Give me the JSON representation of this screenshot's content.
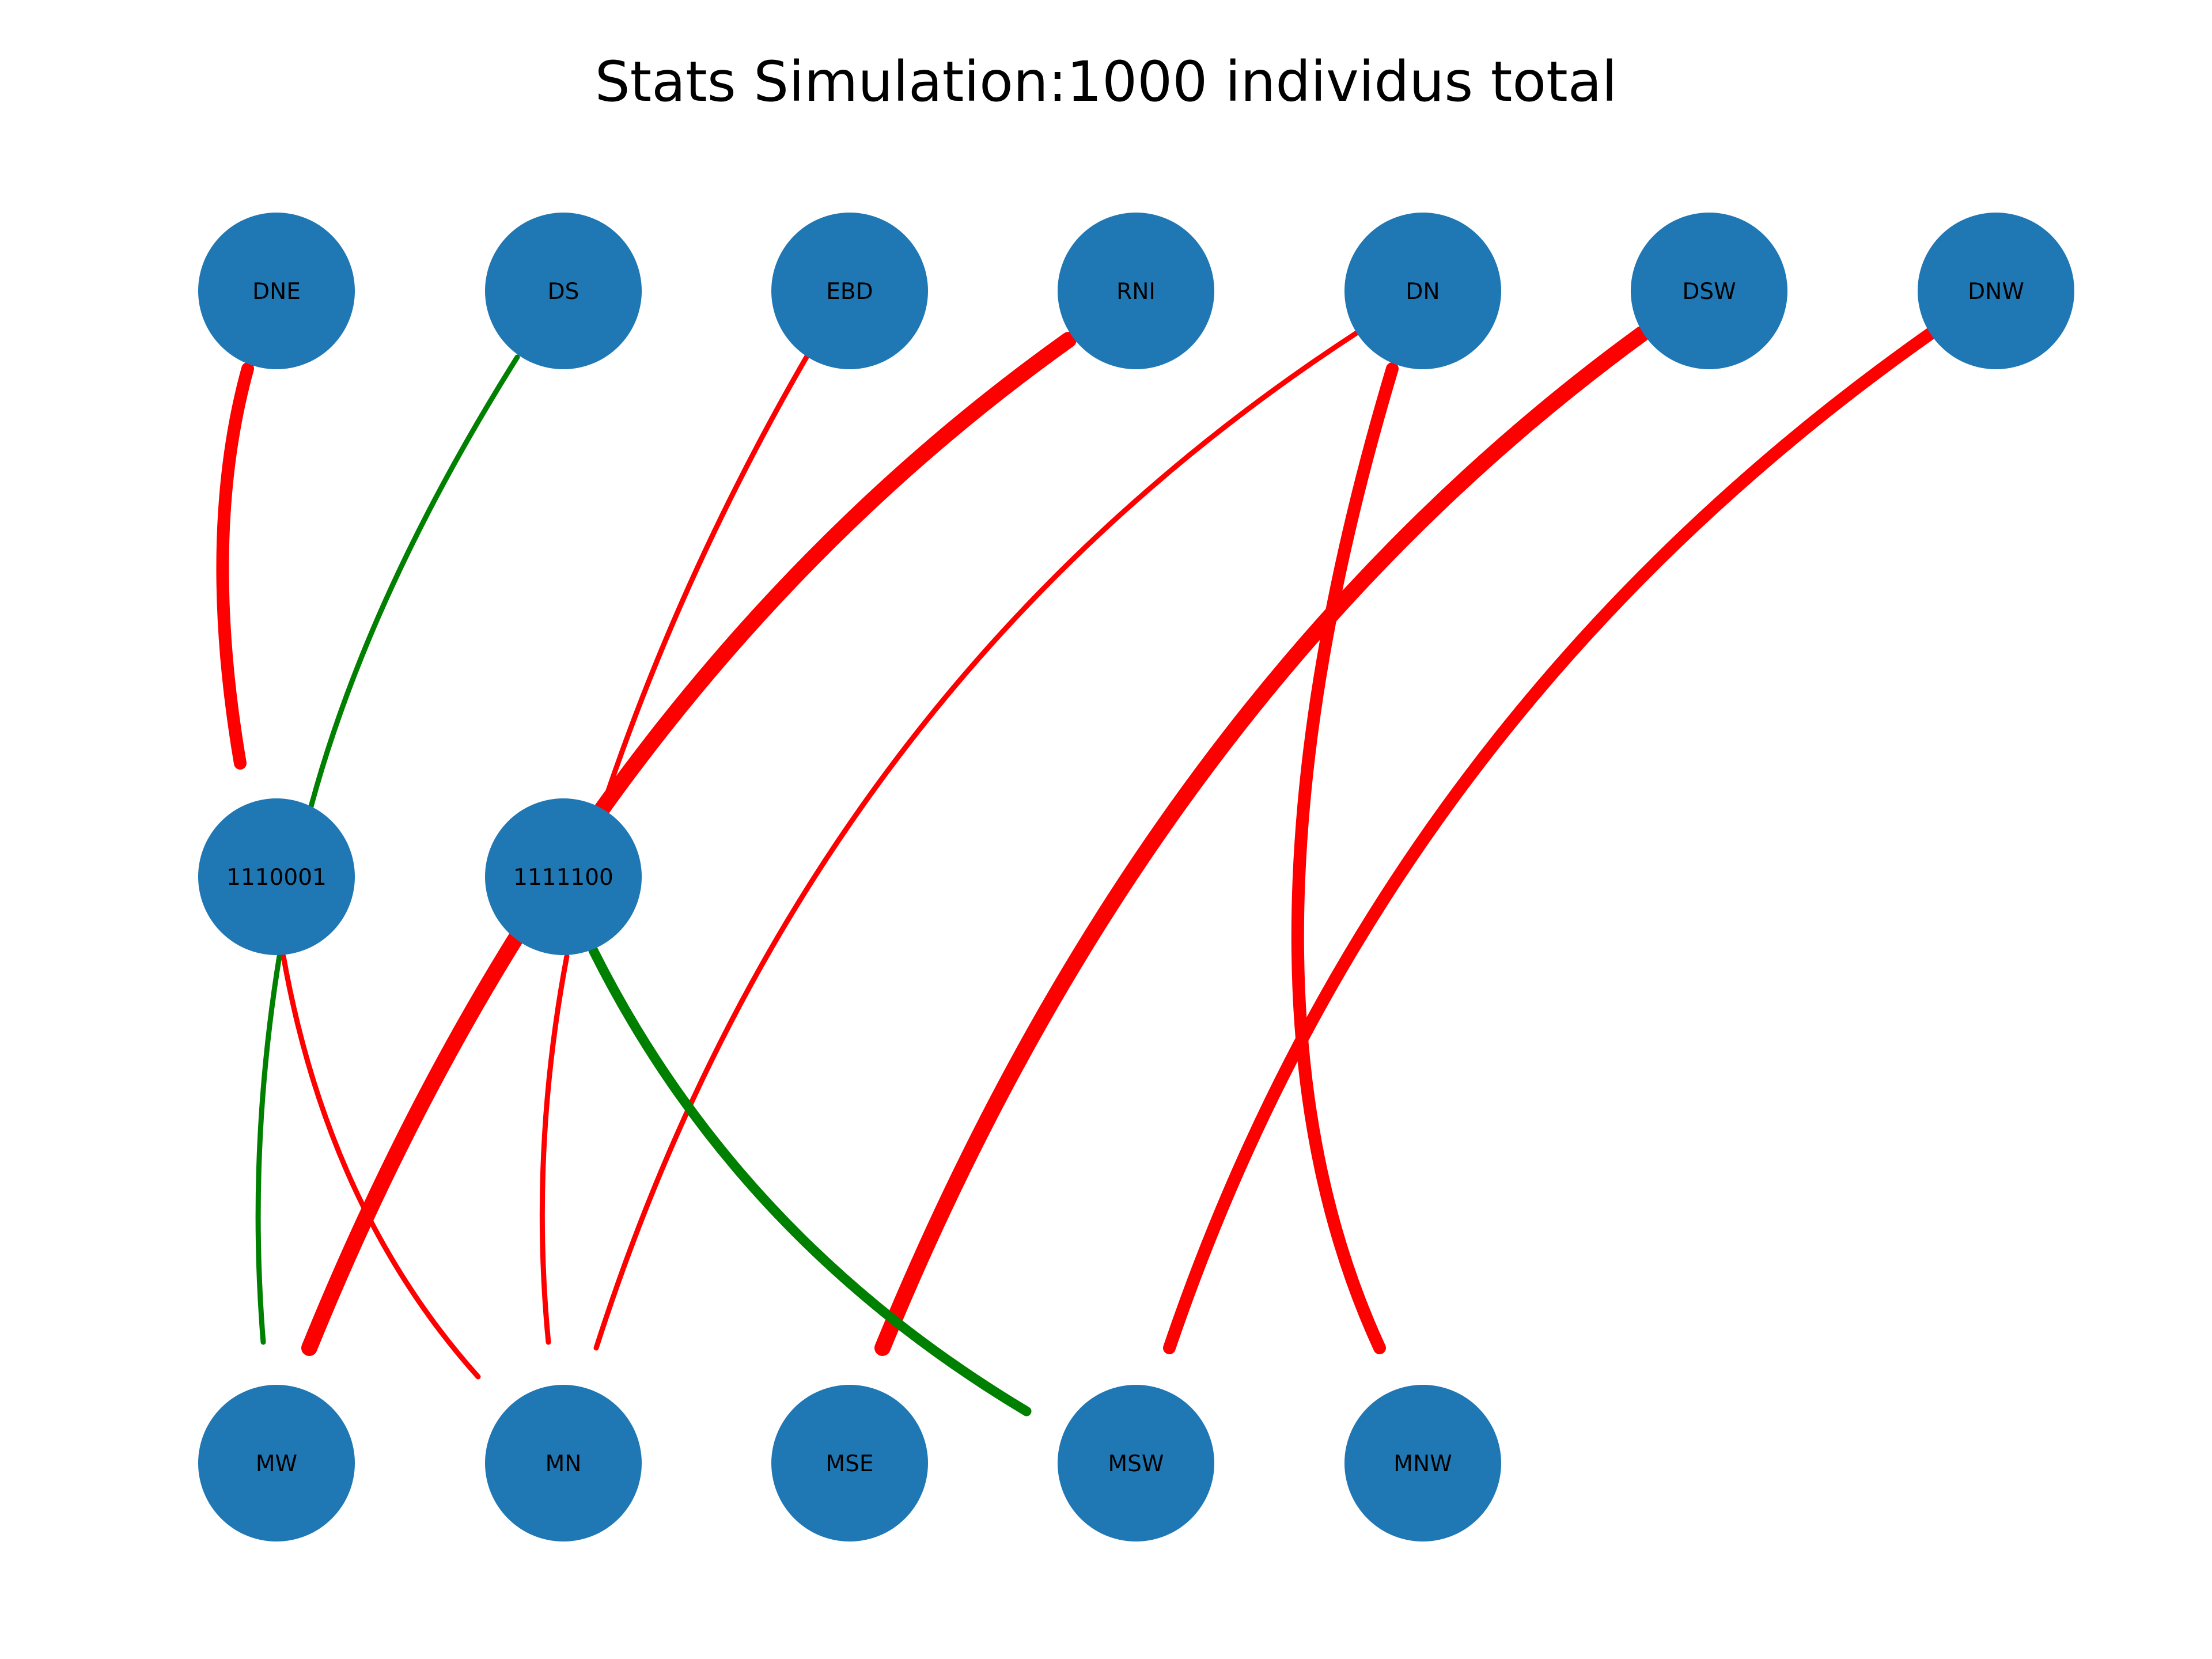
{
  "title": "Stats Simulation:1000 individus total",
  "colors": {
    "node": "#1f77b4",
    "edge_negative": "#ff0000",
    "edge_positive": "#008000",
    "text": "#000000"
  },
  "nodes": [
    {
      "id": "DNE",
      "label": "DNE"
    },
    {
      "id": "DS",
      "label": "DS"
    },
    {
      "id": "EBD",
      "label": "EBD"
    },
    {
      "id": "RNI",
      "label": "RNI"
    },
    {
      "id": "DN",
      "label": "DN"
    },
    {
      "id": "DSW",
      "label": "DSW"
    },
    {
      "id": "DNW",
      "label": "DNW"
    },
    {
      "id": "1110001",
      "label": "1110001"
    },
    {
      "id": "1111100",
      "label": "1111100"
    },
    {
      "id": "MW",
      "label": "MW"
    },
    {
      "id": "MN",
      "label": "MN"
    },
    {
      "id": "MSE",
      "label": "MSE"
    },
    {
      "id": "MSW",
      "label": "MSW"
    },
    {
      "id": "MNW",
      "label": "MNW"
    }
  ],
  "edges": [
    {
      "from": "DNE",
      "to": "1110001",
      "sign": "negative",
      "weight": "heavy"
    },
    {
      "from": "DS",
      "to": "1110001",
      "sign": "positive",
      "weight": "light"
    },
    {
      "from": "EBD",
      "to": "1111100",
      "sign": "negative",
      "weight": "light"
    },
    {
      "from": "RNI",
      "to": "MW",
      "sign": "negative",
      "weight": "heaviest"
    },
    {
      "from": "DN",
      "to": "MN",
      "sign": "negative",
      "weight": "light"
    },
    {
      "from": "DN",
      "to": "MNW",
      "sign": "negative",
      "weight": "heavy"
    },
    {
      "from": "DSW",
      "to": "MSE",
      "sign": "negative",
      "weight": "heaviest"
    },
    {
      "from": "DNW",
      "to": "MSW",
      "sign": "negative",
      "weight": "heavy"
    },
    {
      "from": "1110001",
      "to": "MW",
      "sign": "positive",
      "weight": "light"
    },
    {
      "from": "1110001",
      "to": "MN",
      "sign": "negative",
      "weight": "light"
    },
    {
      "from": "1111100",
      "to": "MN",
      "sign": "negative",
      "weight": "light"
    },
    {
      "from": "1111100",
      "to": "MSW",
      "sign": "positive",
      "weight": "medium"
    }
  ]
}
